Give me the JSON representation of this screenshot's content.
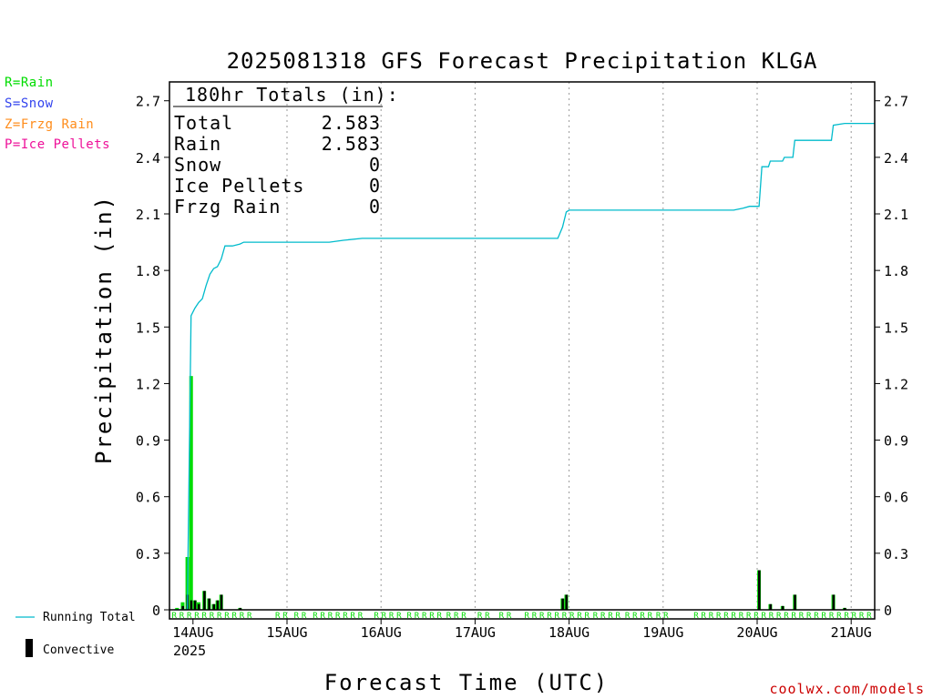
{
  "chart_data": {
    "type": "bar",
    "title": "2025081318 GFS Forecast Precipitation KLGA",
    "xlabel": "Forecast Time (UTC)",
    "ylabel": "Precipitation (in)",
    "ylim": [
      0,
      2.8
    ],
    "yticks": [
      "0",
      "0.3",
      "0.6",
      "0.9",
      "1.2",
      "1.5",
      "1.8",
      "2.1",
      "2.4",
      "2.7"
    ],
    "xlim": [
      -0.25,
      7.25
    ],
    "xticks": [
      {
        "label": "14AUG",
        "day": 0
      },
      {
        "label": "15AUG",
        "day": 1
      },
      {
        "label": "16AUG",
        "day": 2
      },
      {
        "label": "17AUG",
        "day": 3
      },
      {
        "label": "18AUG",
        "day": 4
      },
      {
        "label": "19AUG",
        "day": 5
      },
      {
        "label": "20AUG",
        "day": 6
      },
      {
        "label": "21AUG",
        "day": 7
      }
    ],
    "year_label": "2025",
    "grid": "vertical dotted at day ticks",
    "totals_box": {
      "header": "180hr Totals (in):",
      "rows": [
        {
          "label": "Total",
          "value": "2.583"
        },
        {
          "label": "Rain",
          "value": "2.583"
        },
        {
          "label": "Snow",
          "value": "0"
        },
        {
          "label": "Ice Pellets",
          "value": "0"
        },
        {
          "label": "Frzg Rain",
          "value": "0"
        }
      ]
    },
    "ptype_legend": [
      {
        "text": "R=Rain",
        "color": "#00dd00"
      },
      {
        "text": "S=Snow",
        "color": "#3344ee"
      },
      {
        "text": "Z=Frzg Rain",
        "color": "#ff8c1a"
      },
      {
        "text": "P=Ice Pellets",
        "color": "#ee1199"
      }
    ],
    "series_legend": {
      "running_total": {
        "label": "Running Total",
        "color": "#00bbcc"
      },
      "convective": {
        "label": "Convective",
        "color": "#000000"
      }
    },
    "rain_color": "#00dd00",
    "convective_color": "#000000",
    "running_total_color": "#00bbcc",
    "precip_series": [
      {
        "day": -0.17,
        "total": 0.01,
        "convective": 0.0
      },
      {
        "day": -0.11,
        "total": 0.04,
        "convective": 0.02
      },
      {
        "day": -0.06,
        "total": 0.28,
        "convective": 0.08
      },
      {
        "day": -0.02,
        "total": 1.24,
        "convective": 0.05
      },
      {
        "day": 0.02,
        "total": 0.05,
        "convective": 0.05
      },
      {
        "day": 0.06,
        "total": 0.04,
        "convective": 0.03
      },
      {
        "day": 0.12,
        "total": 0.1,
        "convective": 0.1
      },
      {
        "day": 0.17,
        "total": 0.06,
        "convective": 0.06
      },
      {
        "day": 0.22,
        "total": 0.03,
        "convective": 0.03
      },
      {
        "day": 0.26,
        "total": 0.05,
        "convective": 0.05
      },
      {
        "day": 0.3,
        "total": 0.08,
        "convective": 0.08
      },
      {
        "day": 0.5,
        "total": 0.01,
        "convective": 0.01
      },
      {
        "day": 3.93,
        "total": 0.06,
        "convective": 0.06
      },
      {
        "day": 3.97,
        "total": 0.08,
        "convective": 0.08
      },
      {
        "day": 6.02,
        "total": 0.21,
        "convective": 0.21
      },
      {
        "day": 6.14,
        "total": 0.03,
        "convective": 0.03
      },
      {
        "day": 6.27,
        "total": 0.02,
        "convective": 0.02
      },
      {
        "day": 6.4,
        "total": 0.08,
        "convective": 0.08
      },
      {
        "day": 6.81,
        "total": 0.08,
        "convective": 0.08
      },
      {
        "day": 6.93,
        "total": 0.01,
        "convective": 0.01
      }
    ],
    "running_total": [
      [
        -0.2,
        0.0
      ],
      [
        -0.06,
        0.0
      ],
      [
        -0.02,
        1.56
      ],
      [
        0.02,
        1.6
      ],
      [
        0.06,
        1.63
      ],
      [
        0.1,
        1.65
      ],
      [
        0.14,
        1.72
      ],
      [
        0.18,
        1.78
      ],
      [
        0.22,
        1.81
      ],
      [
        0.26,
        1.82
      ],
      [
        0.3,
        1.86
      ],
      [
        0.34,
        1.93
      ],
      [
        0.42,
        1.93
      ],
      [
        0.5,
        1.94
      ],
      [
        0.54,
        1.95
      ],
      [
        1.0,
        1.95
      ],
      [
        1.45,
        1.95
      ],
      [
        1.6,
        1.96
      ],
      [
        1.8,
        1.97
      ],
      [
        2.5,
        1.97
      ],
      [
        3.5,
        1.97
      ],
      [
        3.88,
        1.97
      ],
      [
        3.93,
        2.03
      ],
      [
        3.97,
        2.11
      ],
      [
        4.0,
        2.12
      ],
      [
        4.5,
        2.12
      ],
      [
        5.5,
        2.12
      ],
      [
        5.75,
        2.12
      ],
      [
        5.85,
        2.13
      ],
      [
        5.92,
        2.14
      ],
      [
        6.02,
        2.14
      ],
      [
        6.05,
        2.35
      ],
      [
        6.12,
        2.35
      ],
      [
        6.14,
        2.38
      ],
      [
        6.27,
        2.38
      ],
      [
        6.29,
        2.4
      ],
      [
        6.38,
        2.4
      ],
      [
        6.4,
        2.49
      ],
      [
        6.79,
        2.49
      ],
      [
        6.81,
        2.57
      ],
      [
        6.93,
        2.58
      ],
      [
        7.25,
        2.58
      ]
    ],
    "ptype_marks": {
      "symbol": "R",
      "segments": [
        [
          -0.2,
          0.6
        ],
        [
          0.9,
          1.0
        ],
        [
          1.1,
          1.25
        ],
        [
          1.3,
          1.85
        ],
        [
          1.95,
          2.25
        ],
        [
          2.3,
          2.65
        ],
        [
          2.72,
          2.95
        ],
        [
          3.05,
          3.2
        ],
        [
          3.28,
          3.4
        ],
        [
          3.55,
          4.25
        ],
        [
          4.28,
          4.55
        ],
        [
          4.62,
          4.9
        ],
        [
          4.95,
          5.1
        ],
        [
          5.35,
          7.25
        ]
      ],
      "spacing": 0.08
    },
    "credit": "coolwx.com/models"
  }
}
